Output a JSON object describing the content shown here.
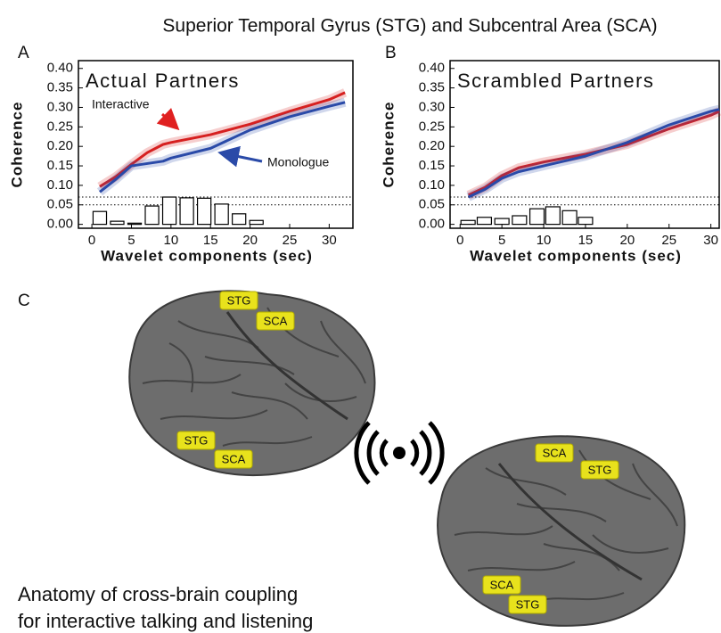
{
  "figure": {
    "title": "Superior Temporal Gyrus (STG) and Subcentral Area (SCA)",
    "panels": [
      "A",
      "B",
      "C"
    ],
    "caption": [
      "Anatomy of cross-brain coupling",
      "for interactive talking and listening"
    ],
    "brain_labels": [
      "STG",
      "SCA",
      "STG",
      "SCA",
      "SCA",
      "STG",
      "SCA",
      "STG"
    ]
  },
  "chart_data": [
    {
      "type": "line",
      "title": "Actual Partners",
      "ylabel": "Coherence",
      "xlabel": "Wavelet components (sec)",
      "xlim": [
        -1.7,
        33
      ],
      "ylim": [
        -0.01,
        0.42
      ],
      "xticks": [
        0,
        5,
        10,
        15,
        20,
        25,
        30
      ],
      "yticks": [
        {
          "value": 0,
          "label": "0.00"
        },
        {
          "value": 0.05,
          "label": "0.05"
        },
        {
          "value": 0.1,
          "label": "0.10"
        },
        {
          "value": 0.15,
          "label": "0.15"
        },
        {
          "value": 0.2,
          "label": "0.20"
        },
        {
          "value": 0.25,
          "label": "0.25"
        },
        {
          "value": 0.3,
          "label": "0.30"
        },
        {
          "value": 0.35,
          "label": "0.35"
        },
        {
          "value": 0.4,
          "label": "0.40"
        }
      ],
      "x": [
        1,
        3,
        5,
        7,
        9,
        10,
        15,
        20,
        25,
        30,
        32
      ],
      "series": [
        {
          "name": "Interactive",
          "color": "#d62020",
          "values": [
            0.097,
            0.122,
            0.154,
            0.184,
            0.205,
            0.21,
            0.23,
            0.257,
            0.29,
            0.32,
            0.338
          ]
        },
        {
          "name": "Monologue",
          "color": "#2a4aa8",
          "values": [
            0.083,
            0.115,
            0.15,
            0.156,
            0.162,
            0.17,
            0.195,
            0.242,
            0.276,
            0.303,
            0.313
          ]
        }
      ],
      "reference_lines": [
        0.05,
        0.07
      ],
      "bars": {
        "x": [
          1,
          3.2,
          5.4,
          7.6,
          9.8,
          12,
          14.2,
          16.4,
          18.6,
          20.8
        ],
        "values": [
          0.033,
          0.008,
          0.003,
          0.047,
          0.07,
          0.068,
          0.067,
          0.052,
          0.027,
          0.01
        ]
      }
    },
    {
      "type": "line",
      "title": "Scrambled Partners",
      "ylabel": "Coherence",
      "xlabel": "Wavelet components (sec)",
      "xlim": [
        -1.2,
        31
      ],
      "ylim": [
        -0.01,
        0.42
      ],
      "xticks": [
        0,
        5,
        10,
        15,
        20,
        25,
        30
      ],
      "yticks": [
        {
          "value": 0,
          "label": "0.00"
        },
        {
          "value": 0.05,
          "label": "0.05"
        },
        {
          "value": 0.1,
          "label": "0.10"
        },
        {
          "value": 0.15,
          "label": "0.15"
        },
        {
          "value": 0.2,
          "label": "0.20"
        },
        {
          "value": 0.25,
          "label": "0.25"
        },
        {
          "value": 0.3,
          "label": "0.30"
        },
        {
          "value": 0.35,
          "label": "0.35"
        },
        {
          "value": 0.4,
          "label": "0.40"
        }
      ],
      "x": [
        1,
        3,
        5,
        7,
        10,
        15,
        20,
        25,
        30,
        31
      ],
      "series": [
        {
          "name": "Interactive",
          "color": "#d62020",
          "values": [
            0.075,
            0.095,
            0.125,
            0.145,
            0.16,
            0.18,
            0.205,
            0.245,
            0.28,
            0.29
          ]
        },
        {
          "name": "Monologue",
          "color": "#2a4aa8",
          "values": [
            0.07,
            0.09,
            0.118,
            0.135,
            0.15,
            0.175,
            0.21,
            0.255,
            0.29,
            0.295
          ]
        }
      ],
      "reference_lines": [
        0.05,
        0.07
      ],
      "bars": {
        "x": [
          0.95,
          2.9,
          5,
          7.1,
          9.2,
          11.1,
          13.1,
          15
        ],
        "values": [
          0.01,
          0.018,
          0.015,
          0.022,
          0.04,
          0.045,
          0.035,
          0.018
        ]
      }
    }
  ]
}
